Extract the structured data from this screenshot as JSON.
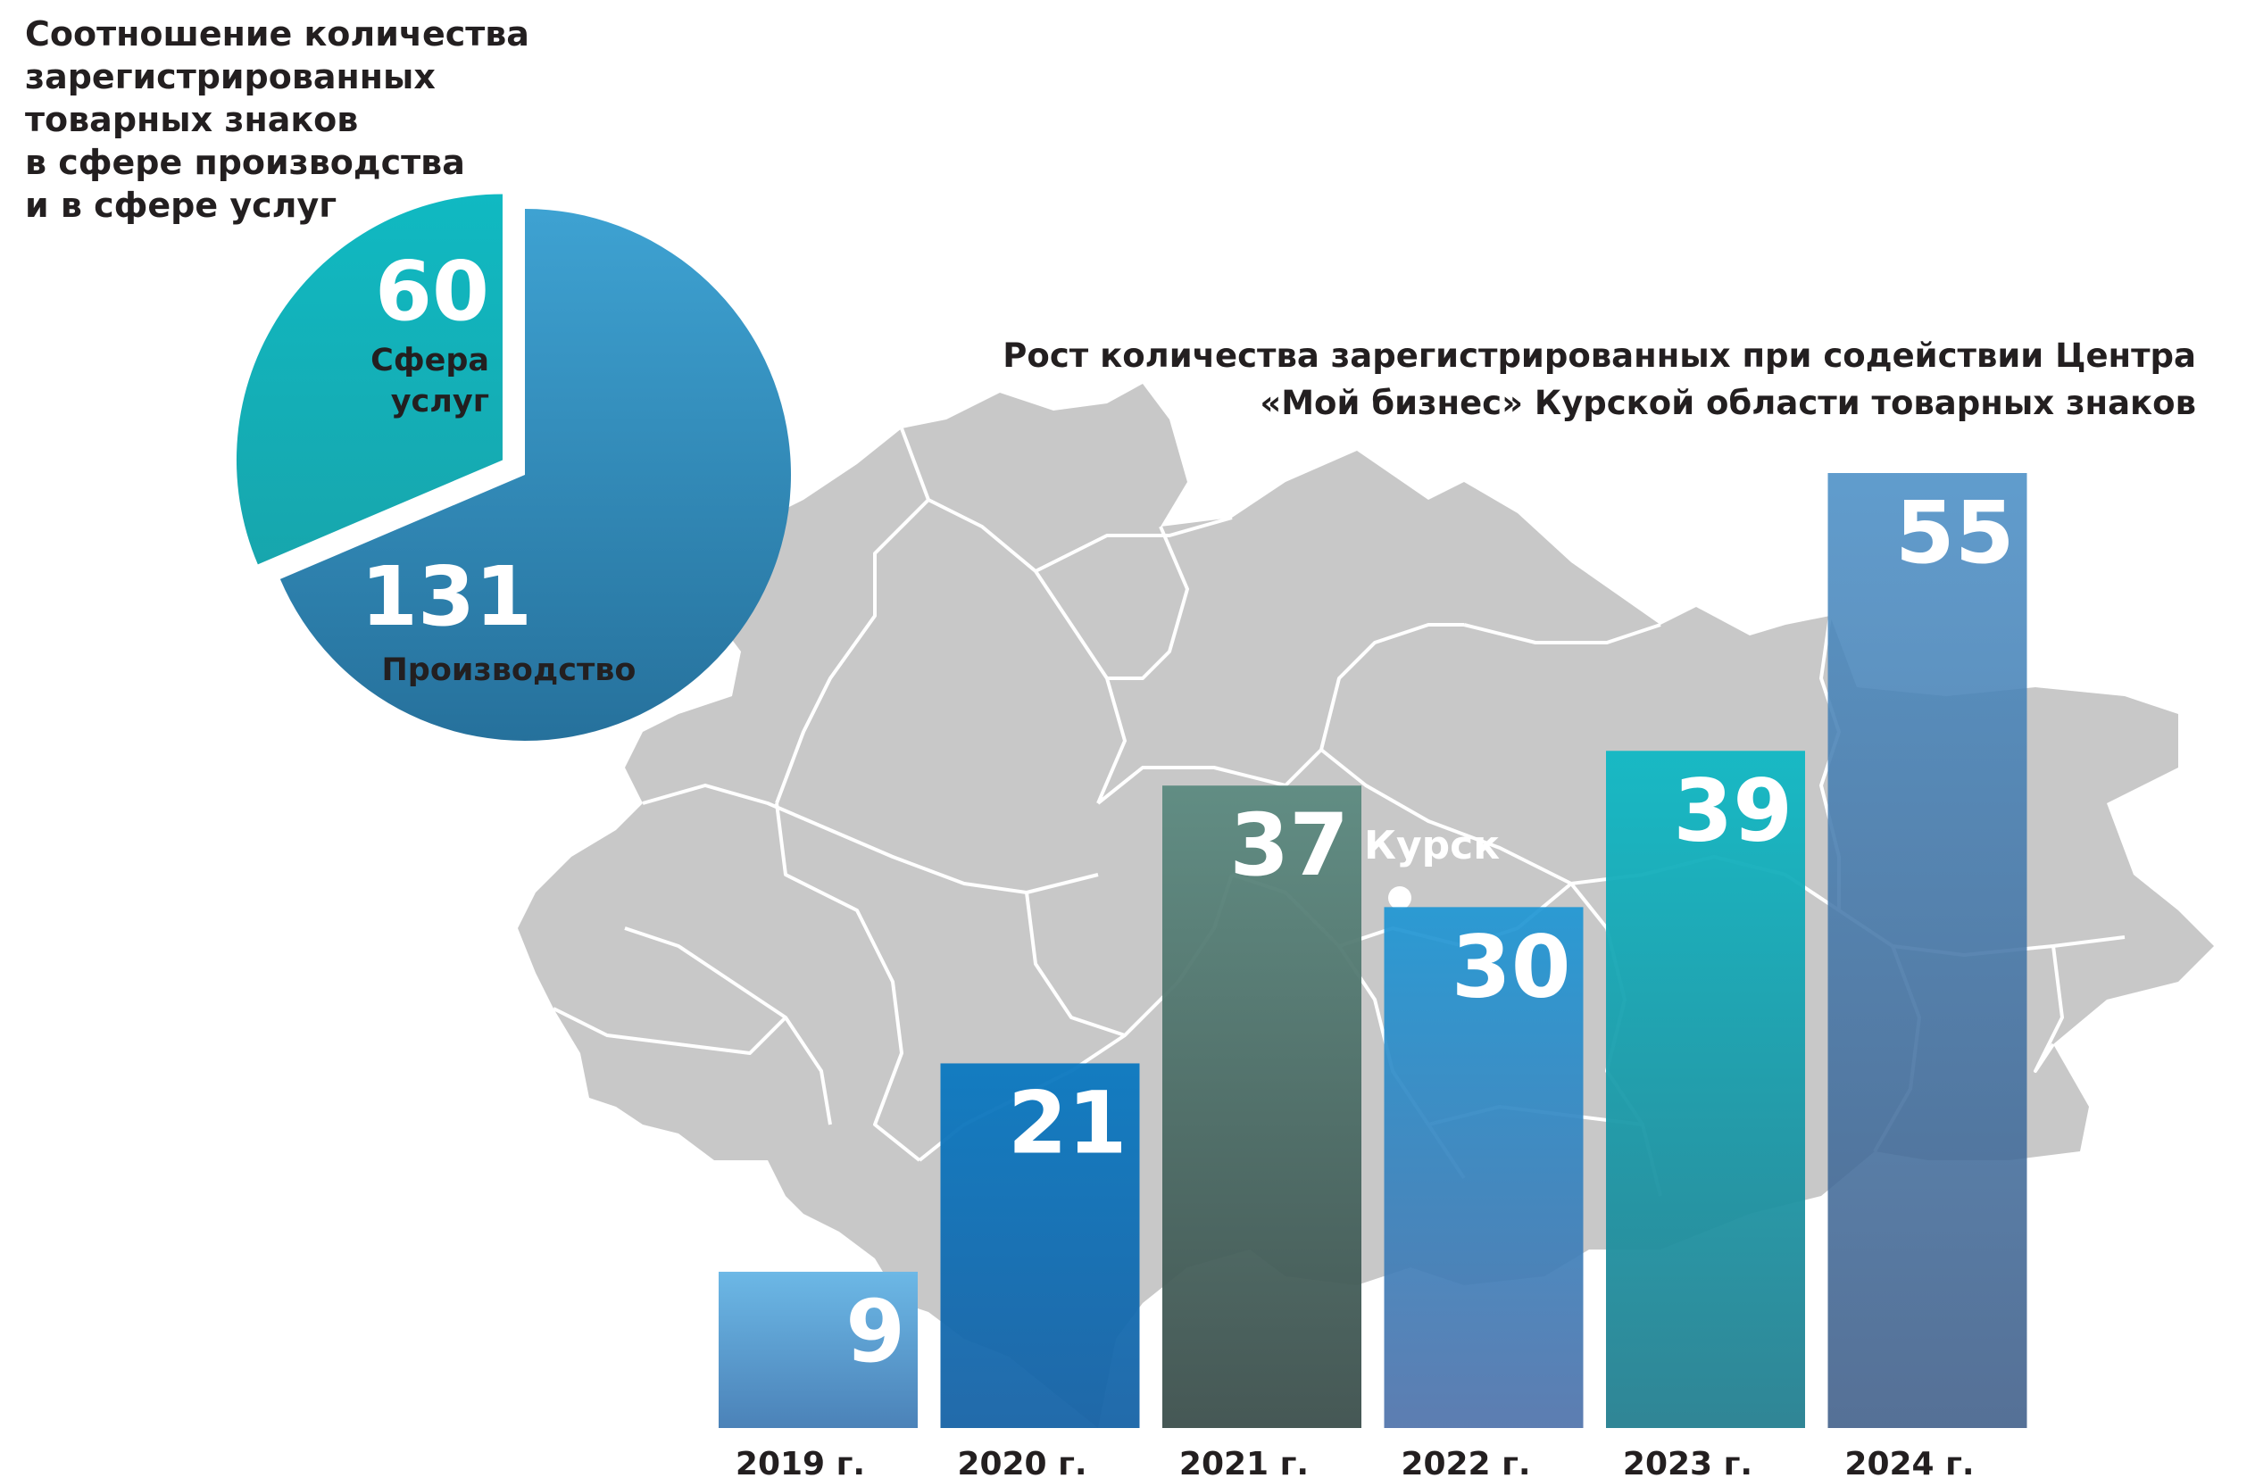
{
  "pie_title_lines": [
    "Соотношение количества",
    "зарегистрированных",
    "товарных знаков",
    "в сфере производства",
    "и в сфере услуг"
  ],
  "bar_title_lines": [
    "Рост количества зарегистрированных при содействии Центра",
    "«Мой бизнес» Курской области товарных знаков"
  ],
  "map_city": "Курск",
  "colors": {
    "services": "#18b5bf",
    "production": "#2f86b4",
    "map": "#c8c8c8",
    "map_borders": "#ffffff"
  },
  "chart_data": [
    {
      "type": "pie",
      "title": "Соотношение количества зарегистрированных товарных знаков в сфере производства и в сфере услуг",
      "slices": [
        {
          "label": "Сфера услуг",
          "value": 60,
          "color": "#18b5bf"
        },
        {
          "label": "Производство",
          "value": 131,
          "color": "#2f86b4"
        }
      ]
    },
    {
      "type": "bar",
      "title": "Рост количества зарегистрированных при содействии Центра «Мой бизнес» Курской области товарных знаков",
      "categories": [
        "2019 г.",
        "2020 г.",
        "2021 г.",
        "2022 г.",
        "2023 г.",
        "2024 г."
      ],
      "values": [
        9,
        21,
        37,
        30,
        39,
        55
      ],
      "bar_colors": [
        [
          "#6cb8e6",
          "#4b82b8"
        ],
        [
          "#0a78c0",
          "#1763a6"
        ],
        [
          "#5c8a80",
          "#3c4f4c"
        ],
        [
          "#1e96d4",
          "#4f72aa"
        ],
        [
          "#0fb8c4",
          "#257f90"
        ],
        [
          "#4b8fc6",
          "#3e5d88"
        ]
      ],
      "ylim": [
        0,
        55
      ],
      "xlabel": "",
      "ylabel": ""
    }
  ]
}
